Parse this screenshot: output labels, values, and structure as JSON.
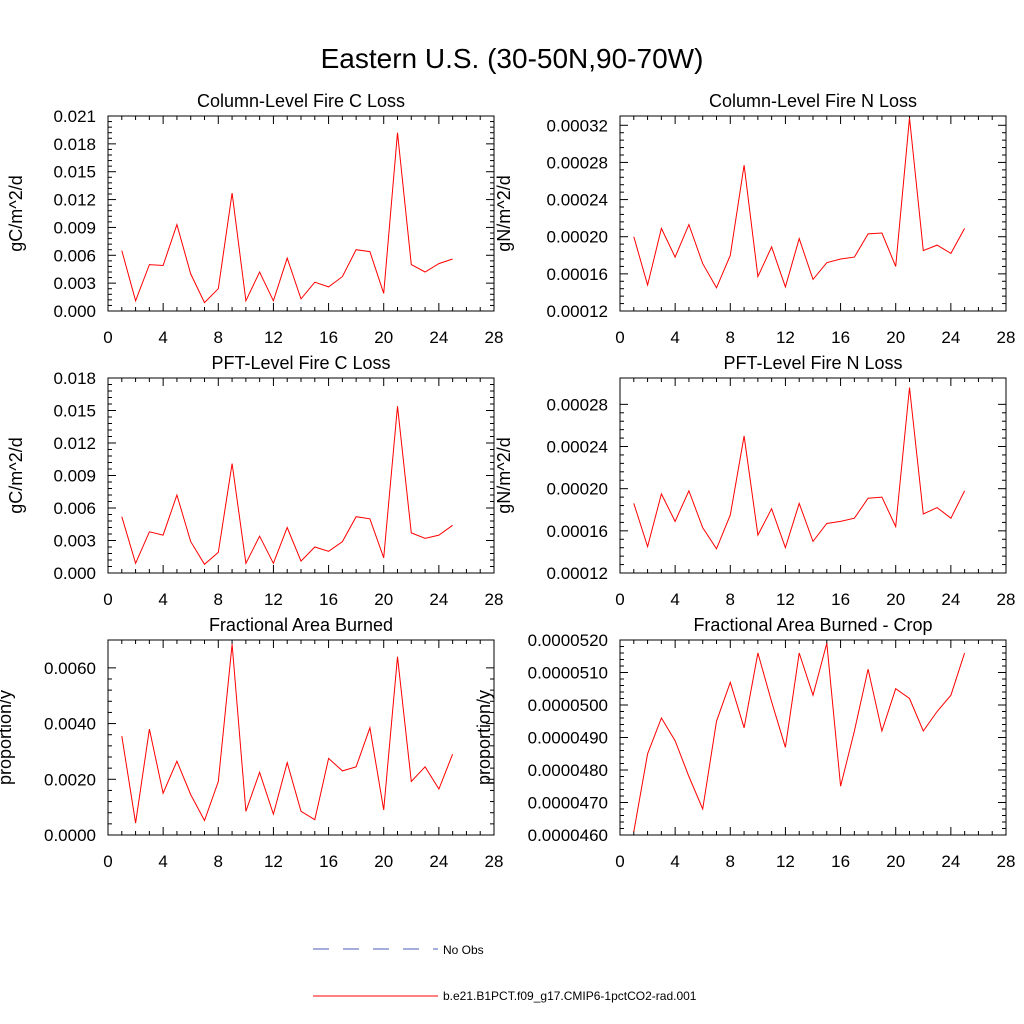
{
  "figure": {
    "title": "Eastern U.S. (30-50N,90-70W)"
  },
  "colors": {
    "series": "#ff0000",
    "obs": "#4b5bb8",
    "axis": "#000000"
  },
  "legend": {
    "items": [
      {
        "label": "No Obs",
        "style": "dashed",
        "color": "#4b5bb8"
      },
      {
        "label": "b.e21.B1PCT.f09_g17.CMIP6-1pctCO2-rad.001",
        "style": "solid",
        "color": "#ff0000"
      }
    ]
  },
  "chart_data": [
    {
      "type": "line",
      "title": "Column-Level Fire C Loss",
      "xlabel": "",
      "ylabel": "gC/m^2/d",
      "xlim": [
        0,
        28
      ],
      "ylim": [
        0,
        0.021
      ],
      "xticks": [
        0,
        4,
        8,
        12,
        16,
        20,
        24,
        28
      ],
      "xtick_labels": [
        "0",
        "4",
        "8",
        "12",
        "16",
        "20",
        "24",
        "28"
      ],
      "yticks": [
        0,
        0.003,
        0.006,
        0.009,
        0.012,
        0.015,
        0.018,
        0.021
      ],
      "ytick_labels": [
        "0.000",
        "0.003",
        "0.006",
        "0.009",
        "0.012",
        "0.015",
        "0.018",
        "0.021"
      ],
      "grid": false,
      "x": [
        1,
        2,
        3,
        4,
        5,
        6,
        7,
        8,
        9,
        10,
        11,
        12,
        13,
        14,
        15,
        16,
        17,
        18,
        19,
        20,
        21,
        22,
        23,
        24,
        25
      ],
      "series": [
        {
          "name": "b.e21.B1PCT.f09_g17.CMIP6-1pctCO2-rad.001",
          "values": [
            0.0065,
            0.0011,
            0.005,
            0.0049,
            0.0093,
            0.004,
            0.0009,
            0.0024,
            0.0127,
            0.0011,
            0.0042,
            0.0011,
            0.0057,
            0.0013,
            0.0031,
            0.0026,
            0.0037,
            0.0066,
            0.0064,
            0.0019,
            0.0192,
            0.005,
            0.0042,
            0.0051,
            0.0056
          ]
        }
      ]
    },
    {
      "type": "line",
      "title": "Column-Level Fire N Loss",
      "xlabel": "",
      "ylabel": "gN/m^2/d",
      "xlim": [
        0,
        28
      ],
      "ylim": [
        0.00012,
        0.00033
      ],
      "xticks": [
        0,
        4,
        8,
        12,
        16,
        20,
        24,
        28
      ],
      "xtick_labels": [
        "0",
        "4",
        "8",
        "12",
        "16",
        "20",
        "24",
        "28"
      ],
      "yticks": [
        0.00012,
        0.00016,
        0.0002,
        0.00024,
        0.00028,
        0.00032
      ],
      "ytick_labels": [
        "0.00012",
        "0.00016",
        "0.00020",
        "0.00024",
        "0.00028",
        "0.00032"
      ],
      "grid": false,
      "x": [
        1,
        2,
        3,
        4,
        5,
        6,
        7,
        8,
        9,
        10,
        11,
        12,
        13,
        14,
        15,
        16,
        17,
        18,
        19,
        20,
        21,
        22,
        23,
        24,
        25
      ],
      "series": [
        {
          "name": "b.e21.B1PCT.f09_g17.CMIP6-1pctCO2-rad.001",
          "values": [
            0.0002,
            0.000148,
            0.000209,
            0.000178,
            0.000213,
            0.000171,
            0.000145,
            0.00018,
            0.000277,
            0.000157,
            0.000189,
            0.000146,
            0.000198,
            0.000154,
            0.000172,
            0.000176,
            0.000178,
            0.000203,
            0.000204,
            0.000168,
            0.000328,
            0.000185,
            0.000191,
            0.000182,
            0.000209
          ]
        }
      ]
    },
    {
      "type": "line",
      "title": "PFT-Level Fire C Loss",
      "xlabel": "",
      "ylabel": "gC/m^2/d",
      "xlim": [
        0,
        28
      ],
      "ylim": [
        0,
        0.018
      ],
      "xticks": [
        0,
        4,
        8,
        12,
        16,
        20,
        24,
        28
      ],
      "xtick_labels": [
        "0",
        "4",
        "8",
        "12",
        "16",
        "20",
        "24",
        "28"
      ],
      "yticks": [
        0,
        0.003,
        0.006,
        0.009,
        0.012,
        0.015,
        0.018
      ],
      "ytick_labels": [
        "0.000",
        "0.003",
        "0.006",
        "0.009",
        "0.012",
        "0.015",
        "0.018"
      ],
      "grid": false,
      "x": [
        1,
        2,
        3,
        4,
        5,
        6,
        7,
        8,
        9,
        10,
        11,
        12,
        13,
        14,
        15,
        16,
        17,
        18,
        19,
        20,
        21,
        22,
        23,
        24,
        25
      ],
      "series": [
        {
          "name": "b.e21.B1PCT.f09_g17.CMIP6-1pctCO2-rad.001",
          "values": [
            0.0052,
            0.0009,
            0.0038,
            0.0035,
            0.0072,
            0.0029,
            0.0008,
            0.0019,
            0.0101,
            0.0009,
            0.0034,
            0.0009,
            0.0042,
            0.0011,
            0.0024,
            0.002,
            0.0029,
            0.0052,
            0.005,
            0.0014,
            0.0154,
            0.0037,
            0.0032,
            0.0035,
            0.0044
          ]
        }
      ]
    },
    {
      "type": "line",
      "title": "PFT-Level Fire N Loss",
      "xlabel": "",
      "ylabel": "gN/m^2/d",
      "xlim": [
        0,
        28
      ],
      "ylim": [
        0.00012,
        0.000305
      ],
      "xticks": [
        0,
        4,
        8,
        12,
        16,
        20,
        24,
        28
      ],
      "xtick_labels": [
        "0",
        "4",
        "8",
        "12",
        "16",
        "20",
        "24",
        "28"
      ],
      "yticks": [
        0.00012,
        0.00016,
        0.0002,
        0.00024,
        0.00028
      ],
      "ytick_labels": [
        "0.00012",
        "0.00016",
        "0.00020",
        "0.00024",
        "0.00028"
      ],
      "grid": false,
      "x": [
        1,
        2,
        3,
        4,
        5,
        6,
        7,
        8,
        9,
        10,
        11,
        12,
        13,
        14,
        15,
        16,
        17,
        18,
        19,
        20,
        21,
        22,
        23,
        24,
        25
      ],
      "series": [
        {
          "name": "b.e21.B1PCT.f09_g17.CMIP6-1pctCO2-rad.001",
          "values": [
            0.000186,
            0.000145,
            0.000195,
            0.000169,
            0.000198,
            0.000163,
            0.000143,
            0.000175,
            0.00025,
            0.000156,
            0.000181,
            0.000144,
            0.000186,
            0.00015,
            0.000167,
            0.000169,
            0.000172,
            0.000191,
            0.000192,
            0.000164,
            0.000296,
            0.000176,
            0.000182,
            0.000172,
            0.000198
          ]
        }
      ]
    },
    {
      "type": "line",
      "title": "Fractional Area Burned",
      "xlabel": "",
      "ylabel": "proportion/y",
      "xlim": [
        0,
        28
      ],
      "ylim": [
        0,
        0.007
      ],
      "xticks": [
        0,
        4,
        8,
        12,
        16,
        20,
        24,
        28
      ],
      "xtick_labels": [
        "0",
        "4",
        "8",
        "12",
        "16",
        "20",
        "24",
        "28"
      ],
      "yticks": [
        0,
        0.002,
        0.004,
        0.006
      ],
      "ytick_labels": [
        "0.0000",
        "0.0020",
        "0.0040",
        "0.0060"
      ],
      "grid": false,
      "x": [
        1,
        2,
        3,
        4,
        5,
        6,
        7,
        8,
        9,
        10,
        11,
        12,
        13,
        14,
        15,
        16,
        17,
        18,
        19,
        20,
        21,
        22,
        23,
        24,
        25
      ],
      "series": [
        {
          "name": "b.e21.B1PCT.f09_g17.CMIP6-1pctCO2-rad.001",
          "values": [
            0.00355,
            0.00043,
            0.0038,
            0.0015,
            0.00265,
            0.00145,
            0.00052,
            0.00192,
            0.00685,
            0.00085,
            0.00225,
            0.00075,
            0.0026,
            0.00085,
            0.00055,
            0.00275,
            0.0023,
            0.00245,
            0.00385,
            0.0009,
            0.0064,
            0.00192,
            0.00245,
            0.00165,
            0.0029
          ]
        }
      ]
    },
    {
      "type": "line",
      "title": "Fractional Area Burned - Crop",
      "xlabel": "",
      "ylabel": "proportion/y",
      "xlim": [
        0,
        28
      ],
      "ylim": [
        4.6e-05,
        5.2e-05
      ],
      "xticks": [
        0,
        4,
        8,
        12,
        16,
        20,
        24,
        28
      ],
      "xtick_labels": [
        "0",
        "4",
        "8",
        "12",
        "16",
        "20",
        "24",
        "28"
      ],
      "yticks": [
        4.6e-05,
        4.7e-05,
        4.8e-05,
        4.9e-05,
        5e-05,
        5.1e-05,
        5.2e-05
      ],
      "ytick_labels": [
        "0.0000460",
        "0.0000470",
        "0.0000480",
        "0.0000490",
        "0.0000500",
        "0.0000510",
        "0.0000520"
      ],
      "grid": false,
      "x": [
        1,
        2,
        3,
        4,
        5,
        6,
        7,
        8,
        9,
        10,
        11,
        12,
        13,
        14,
        15,
        16,
        17,
        18,
        19,
        20,
        21,
        22,
        23,
        24,
        25
      ],
      "series": [
        {
          "name": "b.e21.B1PCT.f09_g17.CMIP6-1pctCO2-rad.001",
          "values": [
            4.61e-05,
            4.85e-05,
            4.96e-05,
            4.89e-05,
            4.78e-05,
            4.68e-05,
            4.95e-05,
            5.07e-05,
            4.93e-05,
            5.16e-05,
            5.01e-05,
            4.87e-05,
            5.16e-05,
            5.03e-05,
            5.19e-05,
            4.75e-05,
            4.92e-05,
            5.11e-05,
            4.92e-05,
            5.05e-05,
            5.02e-05,
            4.92e-05,
            4.98e-05,
            5.03e-05,
            5.16e-05
          ]
        }
      ]
    }
  ]
}
